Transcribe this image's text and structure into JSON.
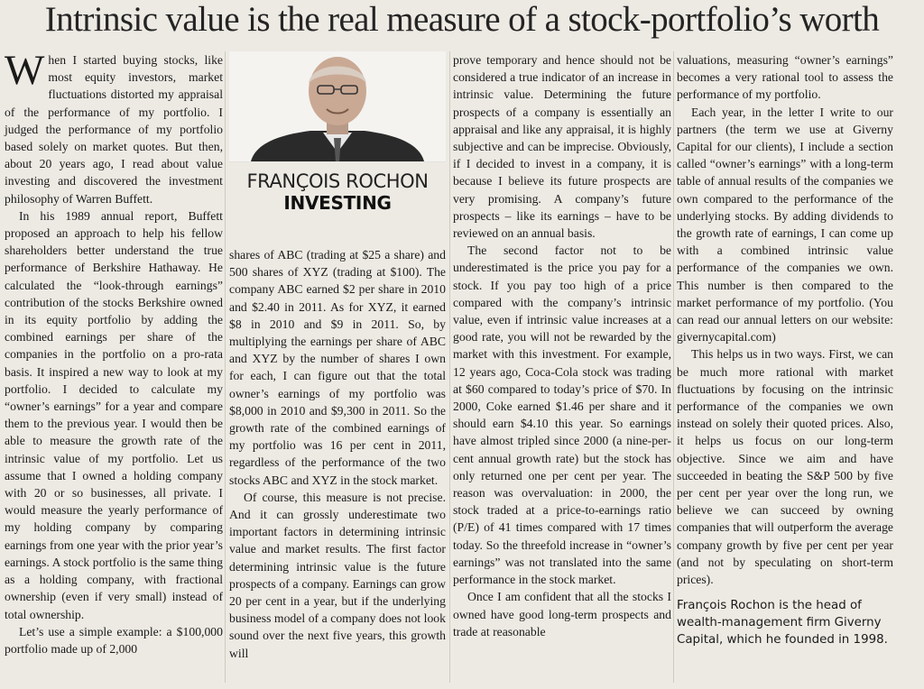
{
  "article": {
    "headline": "Intrinsic value is the real measure of a stock-portfolio’s worth",
    "author": "FRANÇOIS ROCHON",
    "section": "INVESTING",
    "dropcap": "W",
    "paragraphs": [
      "hen I started buying stocks, like most equity investors, market fluctuations distorted my appraisal of the performance of my portfolio. I judged the performance of my portfolio based solely on market quotes. But then, about 20 years ago, I read about value investing and discovered the investment philosophy of Warren Buffett.",
      "In his 1989 annual report, Buffett proposed an approach to help his fellow shareholders better understand the true performance of Berkshire Hathaway. He calculated the “look-through earnings” contribution of the stocks Berkshire owned in its equity portfolio by adding the combined earnings per share of the companies in the portfolio on a pro-rata basis. It inspired a new way to look at my portfolio. I decided to calculate my “owner’s earnings” for a year and compare them to the previous year. I would then be able to measure the growth rate of the intrinsic value of my portfolio. Let us assume that I owned a holding company with 20 or so businesses, all private. I would measure the yearly performance of my holding company by comparing earnings from one year with the prior year’s earnings. A stock portfolio is the same thing as a holding company, with fractional ownership (even if very small) instead of total ownership.",
      "Let’s use a simple example: a $100,000 portfolio made up of 2,000",
      "shares of ABC (trading at $25 a share) and 500 shares of XYZ (trading at $100). The company ABC earned $2 per share in 2010 and $2.40 in 2011. As for XYZ, it earned $8 in 2010 and $9 in 2011. So, by multiplying the earnings per share of ABC and XYZ by the number of shares I own for each, I can figure out that the total owner’s earnings of my portfolio was $8,000 in 2010 and $9,300 in 2011. So the growth rate of the combined earnings of my portfolio was 16 per cent in 2011, regardless of the performance of the two stocks ABC and XYZ in the stock market.",
      "Of course, this measure is not precise. And it can grossly underestimate two important factors in determining intrinsic value and market results. The first factor determining intrinsic value is the future prospects of a company. Earnings can grow 20 per cent in a year, but if the underlying business model of a company does not look sound over the next five years, this growth will",
      "prove temporary and hence should not be considered a true indicator of an increase in intrinsic value. Determining the future prospects of a company is essentially an appraisal and like any appraisal, it is highly subjective and can be imprecise. Obviously, if I decided to invest in a company, it is because I believe its future prospects are very promising. A company’s future prospects – like its earnings – have to be reviewed on an annual basis.",
      "The second factor not to be underestimated is the price you pay for a stock. If you pay too high of a price compared with the company’s intrinsic value, even if intrinsic value increases at a good rate, you will not be rewarded by the market with this investment. For example, 12 years ago, Coca-Cola stock was trading at $60 compared to today’s price of $70. In 2000, Coke earned $1.46 per share and it should earn $4.10 this year. So earnings have almost tripled since 2000 (a nine-per-cent annual growth rate) but the stock has only returned one per cent per year. The reason was overvaluation: in 2000, the stock traded at a price-to-earnings ratio (P/E) of 41 times compared with 17 times today. So the threefold increase in “owner’s earnings” was not translated into the same performance in the stock market.",
      "Once I am confident that all the stocks I owned have good long-term prospects and trade at reasonable",
      "valuations, measuring “owner’s earnings” becomes a very rational tool to assess the performance of my portfolio.",
      "Each year, in the letter I write to our partners (the term we use at Giverny Capital for our clients), I include a section called “owner’s earnings” with a long-term table of annual results of the companies we own compared to the performance of the underlying stocks. By adding dividends to the growth rate of earnings, I can come up with a combined intrinsic value performance of the companies we own. This number is then compared to the market performance of my portfolio. (You can read our annual letters on our website: givernycapital.com)",
      "This helps us in two ways. First, we can be much more rational with market fluctuations by focusing on the intrinsic performance of the companies we own instead on solely their quoted prices. Also, it helps us focus on our long-term objective. Since we aim and have succeeded in beating the S&P 500 by five per cent per year over the long run, we believe we can succeed by owning companies that will outperform the average company growth by five per cent per year (and not by speculating on short-term prices).",
      "François Rochon is the head of wealth-management firm Giverny Capital, which he founded in 1998."
    ]
  }
}
